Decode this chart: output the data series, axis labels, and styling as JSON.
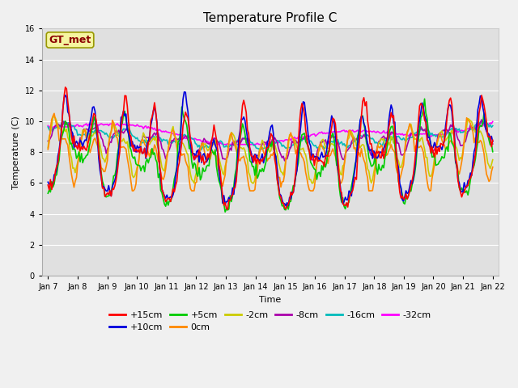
{
  "title": "Temperature Profile C",
  "xlabel": "Time",
  "ylabel": "Temperature (C)",
  "ylim": [
    0,
    16
  ],
  "x_tick_labels": [
    "Jan 7",
    "Jan 8",
    "Jan 9",
    "Jan 10",
    "Jan 11",
    "Jan 12",
    "Jan 13",
    "Jan 14",
    "Jan 15",
    "Jan 16",
    "Jan 17",
    "Jan 18",
    "Jan 19",
    "Jan 20",
    "Jan 21",
    "Jan 22"
  ],
  "series_colors": {
    "+15cm": "#ff0000",
    "+10cm": "#0000dd",
    "+5cm": "#00cc00",
    "0cm": "#ff8800",
    "-2cm": "#cccc00",
    "-8cm": "#aa00aa",
    "-16cm": "#00bbbb",
    "-32cm": "#ff00ff"
  },
  "annotation_text": "GT_met",
  "annotation_fg": "#8B0000",
  "annotation_bg": "#f5f5a0",
  "annotation_edge": "#999900",
  "background_color": "#e0e0e0",
  "grid_color": "#ffffff",
  "fig_bg": "#f0f0f0",
  "title_fontsize": 11,
  "label_fontsize": 8,
  "tick_fontsize": 7,
  "legend_fontsize": 8,
  "linewidth": 1.2
}
